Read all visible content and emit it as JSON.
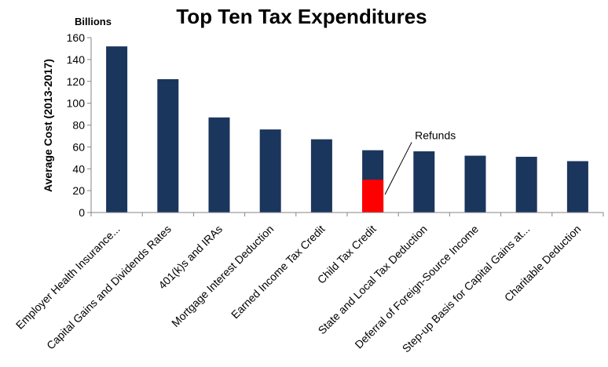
{
  "chart_data": {
    "type": "bar",
    "title": "Top Ten Tax Expenditures",
    "unit_label": "Billions",
    "xlabel": "",
    "ylabel": "Average Cost (2013-2017)",
    "ylim": [
      0,
      160
    ],
    "yticks": [
      0,
      20,
      40,
      60,
      80,
      100,
      120,
      140,
      160
    ],
    "grid": false,
    "categories": [
      "Employer Health Insurance...",
      "Capital Gains and Dividends Rates",
      "401(k)s and IRAs",
      "Mortgage Interest Deduction",
      "Earned Income Tax Credit",
      "Child Tax Credit",
      "State and Local Tax Deduction",
      "Deferral of Foreign-Source Income",
      "Step-up Basis for Capital Gains at...",
      "Charitable Deduction"
    ],
    "values": [
      152,
      122,
      87,
      76,
      67,
      57,
      56,
      52,
      51,
      47
    ],
    "series_color": "#1b365d",
    "refunds": {
      "category": "Child Tax Credit",
      "value": 30,
      "label": "Refunds",
      "color": "#ff0000"
    }
  }
}
